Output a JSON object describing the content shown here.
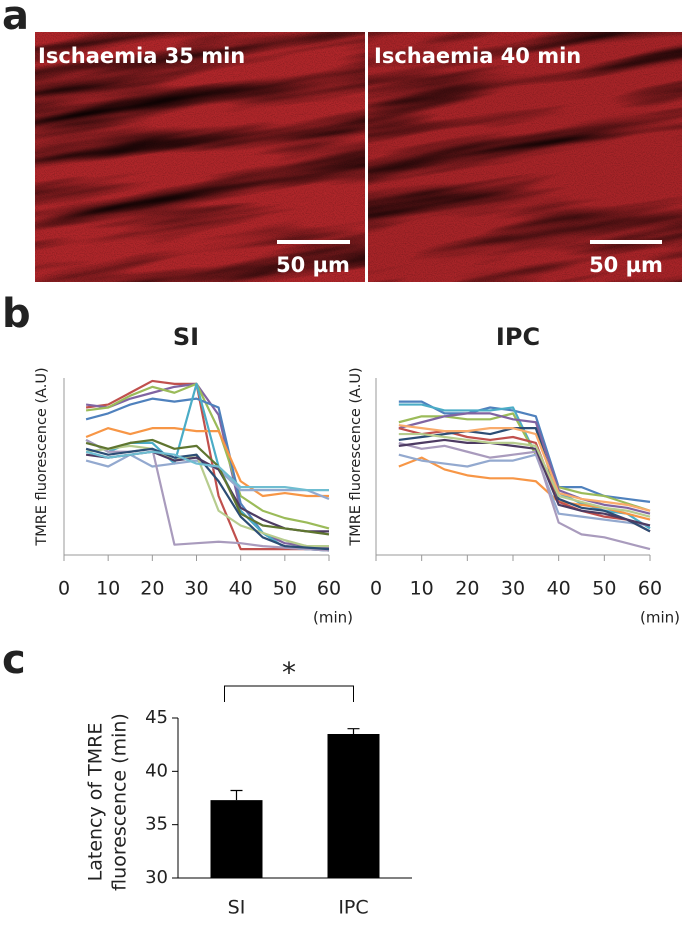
{
  "panel_labels": [
    "a",
    "b",
    "c"
  ],
  "images": [
    {
      "label": "Ischaemia 35 min",
      "scale_bar": "50 µm"
    },
    {
      "label": "Ischaemia 40 min",
      "scale_bar": "50 µm"
    }
  ],
  "chart_data": [
    {
      "type": "line",
      "title": "SI",
      "ylabel": "TMRE fluorescence (A.U)",
      "xlabel": "(min)",
      "x": [
        5,
        10,
        15,
        20,
        25,
        30,
        35,
        40,
        45,
        50,
        55,
        60
      ],
      "xlim": [
        0,
        60
      ],
      "xticks": [
        0,
        10,
        20,
        30,
        40,
        50,
        60
      ],
      "ylim": [
        0,
        12
      ],
      "series": [
        {
          "color": "#c0504d",
          "values": [
            10.0,
            10.2,
            11.0,
            11.8,
            11.6,
            11.6,
            4.0,
            0.4,
            0.4,
            0.4,
            0.4,
            0.4
          ]
        },
        {
          "color": "#8064a2",
          "values": [
            10.2,
            10.0,
            10.6,
            11.0,
            11.4,
            11.6,
            9.5,
            3.0,
            1.5,
            0.8,
            0.6,
            0.5
          ]
        },
        {
          "color": "#9bbb59",
          "values": [
            9.8,
            10.0,
            10.8,
            11.4,
            11.0,
            11.6,
            8.5,
            4.0,
            3.0,
            2.5,
            2.2,
            1.8
          ]
        },
        {
          "color": "#4f81bd",
          "values": [
            9.2,
            9.6,
            10.2,
            10.6,
            10.4,
            10.6,
            10.0,
            3.5,
            1.5,
            0.5,
            0.4,
            0.3
          ]
        },
        {
          "color": "#f79646",
          "values": [
            8.0,
            8.6,
            8.2,
            8.6,
            8.6,
            8.4,
            8.4,
            5.0,
            4.0,
            4.2,
            4.0,
            4.0
          ]
        },
        {
          "color": "#4bacc6",
          "values": [
            7.8,
            7.0,
            7.6,
            7.6,
            6.2,
            11.6,
            6.0,
            3.0,
            1.5,
            0.5,
            0.4,
            0.3
          ]
        },
        {
          "color": "#93a9cf",
          "values": [
            6.4,
            6.0,
            6.8,
            6.0,
            6.2,
            6.4,
            5.8,
            4.4,
            4.4,
            4.4,
            4.4,
            3.8
          ]
        },
        {
          "color": "#a99bbd",
          "values": [
            7.8,
            7.0,
            7.0,
            7.2,
            0.7,
            0.8,
            0.9,
            0.8,
            0.6,
            0.5,
            0.4,
            0.3
          ]
        },
        {
          "color": "#b7cc8e",
          "values": [
            7.0,
            7.2,
            7.4,
            7.2,
            6.4,
            6.8,
            3.0,
            2.0,
            1.5,
            1.0,
            0.6,
            0.6
          ]
        },
        {
          "color": "#2c4d75",
          "values": [
            7.2,
            6.8,
            7.0,
            7.2,
            6.6,
            6.8,
            5.0,
            2.6,
            1.2,
            0.6,
            0.5,
            0.4
          ]
        },
        {
          "color": "#4d3b62",
          "values": [
            6.8,
            6.6,
            6.8,
            7.0,
            6.4,
            6.6,
            5.8,
            3.2,
            2.4,
            1.8,
            1.6,
            1.6
          ]
        },
        {
          "color": "#5f7530",
          "values": [
            7.6,
            7.2,
            7.6,
            7.8,
            7.2,
            7.4,
            6.0,
            2.8,
            2.0,
            1.8,
            1.6,
            1.4
          ]
        },
        {
          "color": "#6fbdd1",
          "values": [
            7.0,
            6.6,
            6.8,
            7.0,
            6.8,
            6.2,
            6.0,
            4.6,
            4.6,
            4.6,
            4.4,
            4.4
          ]
        }
      ]
    },
    {
      "type": "line",
      "title": "IPC",
      "ylabel": "TMRE fluorescence (A.U)",
      "xlabel": "(min)",
      "x": [
        5,
        10,
        15,
        20,
        25,
        30,
        35,
        40,
        45,
        50,
        55,
        60
      ],
      "xlim": [
        0,
        60
      ],
      "xticks": [
        0,
        10,
        20,
        30,
        40,
        50,
        60
      ],
      "ylim": [
        0,
        12
      ],
      "series": [
        {
          "color": "#4f81bd",
          "values": [
            10.4,
            10.4,
            9.6,
            9.6,
            10.0,
            9.8,
            9.4,
            4.6,
            4.6,
            4.0,
            3.8,
            3.6
          ]
        },
        {
          "color": "#4bacc6",
          "values": [
            10.2,
            10.2,
            9.8,
            9.8,
            9.8,
            10.0,
            6.8,
            4.2,
            3.5,
            3.0,
            2.8,
            1.8
          ]
        },
        {
          "color": "#9bbb59",
          "values": [
            9.0,
            9.4,
            9.4,
            9.2,
            9.2,
            9.6,
            6.8,
            4.6,
            4.2,
            4.0,
            3.5,
            3.0
          ]
        },
        {
          "color": "#8064a2",
          "values": [
            8.6,
            9.0,
            9.4,
            9.6,
            9.6,
            9.2,
            9.0,
            4.4,
            3.8,
            3.4,
            3.2,
            2.8
          ]
        },
        {
          "color": "#f79646",
          "values": [
            6.0,
            6.6,
            5.8,
            5.4,
            5.2,
            5.2,
            5.0,
            3.6,
            3.4,
            3.2,
            2.8,
            2.4
          ]
        },
        {
          "color": "#93a9cf",
          "values": [
            6.8,
            6.4,
            6.2,
            6.0,
            6.4,
            6.4,
            6.8,
            2.8,
            2.6,
            2.4,
            2.2,
            2.0
          ]
        },
        {
          "color": "#c0504d",
          "values": [
            8.6,
            8.2,
            8.4,
            8.0,
            7.8,
            8.0,
            7.6,
            3.6,
            3.0,
            2.6,
            2.4,
            1.6
          ]
        },
        {
          "color": "#a99bbd",
          "values": [
            7.6,
            7.2,
            7.4,
            7.0,
            6.6,
            6.8,
            7.0,
            2.2,
            1.4,
            1.2,
            0.8,
            0.4
          ]
        },
        {
          "color": "#2c4d75",
          "values": [
            7.8,
            8.0,
            8.2,
            8.4,
            8.2,
            8.6,
            8.6,
            3.8,
            3.2,
            3.0,
            2.4,
            1.6
          ]
        },
        {
          "color": "#f9ab6b",
          "values": [
            8.8,
            8.6,
            8.4,
            8.4,
            8.6,
            8.6,
            8.2,
            4.2,
            3.8,
            3.6,
            3.4,
            3.0
          ]
        },
        {
          "color": "#4d3b62",
          "values": [
            7.4,
            7.6,
            7.8,
            7.6,
            7.6,
            7.4,
            7.2,
            3.4,
            3.0,
            2.8,
            2.4,
            2.0
          ]
        },
        {
          "color": "#b7cc8e",
          "values": [
            8.2,
            8.2,
            8.0,
            7.8,
            7.6,
            7.6,
            7.4,
            4.0,
            3.6,
            3.2,
            3.0,
            2.6
          ]
        }
      ]
    },
    {
      "type": "bar",
      "ylabel": [
        "Latency of TMRE",
        "fluorescence (min)"
      ],
      "categories": [
        "SI",
        "IPC"
      ],
      "values": [
        37.3,
        43.5
      ],
      "errors": [
        0.9,
        0.5
      ],
      "color": "#000000",
      "ylim": [
        30,
        45
      ],
      "yticks": [
        30,
        35,
        40,
        45
      ],
      "annotation": "*"
    }
  ]
}
